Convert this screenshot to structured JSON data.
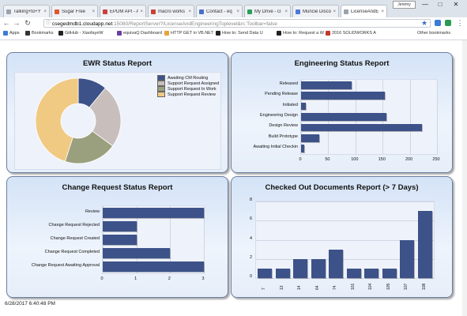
{
  "browser": {
    "tabs": [
      {
        "label": "Talking+to+Y",
        "color": "#9aa3ad"
      },
      {
        "label": "Sugar Free",
        "color": "#e0562d"
      },
      {
        "label": "EPDM API - A",
        "color": "#c8423a"
      },
      {
        "label": "macro works",
        "color": "#c8423a"
      },
      {
        "label": "Contact - eq",
        "color": "#4a6fc9"
      },
      {
        "label": "My Drive - G",
        "color": "#2aa05a"
      },
      {
        "label": "Muncie Disco",
        "color": "#4a78d8"
      },
      {
        "label": "LicenseAndE",
        "color": "#9aa3ad"
      }
    ],
    "profile_label": "Jeremy",
    "url_host": "csegedmdb1.cloudapp.net",
    "url_path": ":15080/ReportServer?/LicenseAndEngineeringToplevel&rc:Toolbar=false",
    "bookmarks": [
      "Apps",
      "Bookmarks",
      "GitHub - XiaofayeW",
      "equivaQ Dashboard",
      "HTTP GET in VB.NET",
      "How to: Send Data U",
      "How to: Request a W",
      "2016 SOLIDWORKS A"
    ],
    "other_bookmarks": "Other bookmarks"
  },
  "ewr_panel": {
    "title": "EWR Status Report",
    "chart_data": {
      "type": "pie",
      "title": "EWR Status Report",
      "labels": [
        "Awaiting CM Routing",
        "Support Request Assigned",
        "Support Request In Work",
        "Support Request Review"
      ],
      "values": [
        11,
        24,
        20,
        45
      ],
      "colors": [
        "#3d5289",
        "#c8bfbc",
        "#9aa07e",
        "#f0c982"
      ]
    }
  },
  "eng_panel": {
    "title": "Engineering Status Report",
    "chart_data": {
      "type": "bar",
      "title": "Engineering Status Report",
      "categories": [
        "Released",
        "Pending Release",
        "Initiated",
        "Engineering Design",
        "Design Review",
        "Build Prototype",
        "Awaiting Initial Checkin"
      ],
      "values": [
        93,
        154,
        9,
        157,
        223,
        33,
        6
      ],
      "xlim": [
        0,
        250
      ],
      "xticks": [
        "0",
        "50",
        "100",
        "150",
        "200",
        "250"
      ]
    }
  },
  "cr_panel": {
    "title": "Change Request Status Report",
    "chart_data": {
      "type": "bar",
      "title": "Change Request Status Report",
      "categories": [
        "Review",
        "Change Request Rejected",
        "Change Request Created",
        "Change Request Completed",
        "Change Request Awaiting Approval"
      ],
      "values": [
        3,
        1,
        1,
        2,
        3
      ],
      "xlim": [
        0,
        3
      ],
      "xticks": [
        "0",
        "1",
        "2",
        "3"
      ]
    }
  },
  "co_panel": {
    "title": "Checked Out Documents Report (> 7 Days)",
    "chart_data": {
      "type": "bar",
      "title": "Checked Out Documents Report (> 7 Days)",
      "categories": [
        "7",
        "13",
        "14",
        "64",
        "74",
        "101",
        "104",
        "105",
        "107",
        "108"
      ],
      "values": [
        1,
        1,
        2,
        2,
        3,
        1,
        1,
        1,
        4,
        7
      ],
      "ylim": [
        0,
        8
      ],
      "yticks": [
        "0",
        "2",
        "4",
        "6",
        "8"
      ]
    }
  },
  "footer": {
    "timestamp": "6/28/2017 6:40:48 PM"
  }
}
